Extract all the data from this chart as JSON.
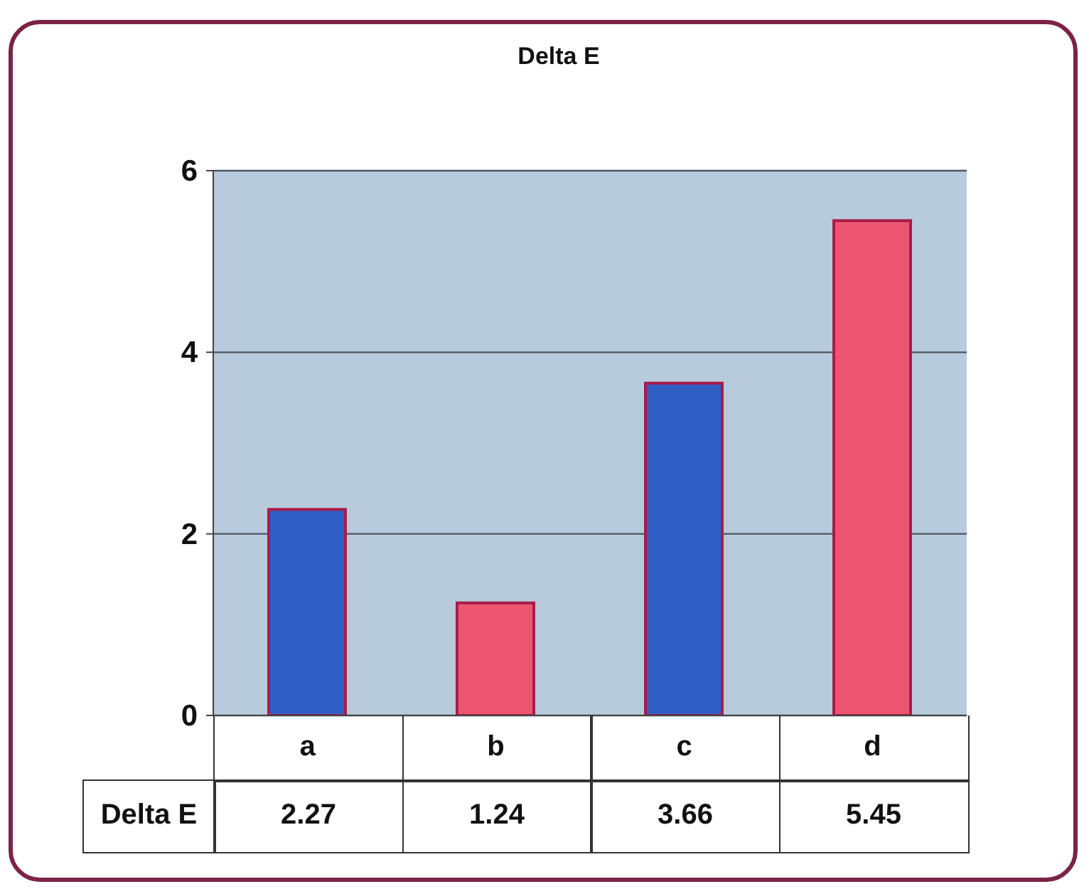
{
  "chart_data": {
    "type": "bar",
    "title": "Delta E",
    "categories": [
      "a",
      "b",
      "c",
      "d"
    ],
    "series": [
      {
        "name": "Delta E",
        "values": [
          2.27,
          1.24,
          3.66,
          5.45
        ],
        "colors": [
          "#2f5fc4",
          "#ec5670",
          "#2f5fc4",
          "#ec5670"
        ]
      }
    ],
    "ylim": [
      0,
      6
    ],
    "yticks": [
      0,
      2,
      4,
      6
    ],
    "grid": "y",
    "data_labels": true
  }
}
